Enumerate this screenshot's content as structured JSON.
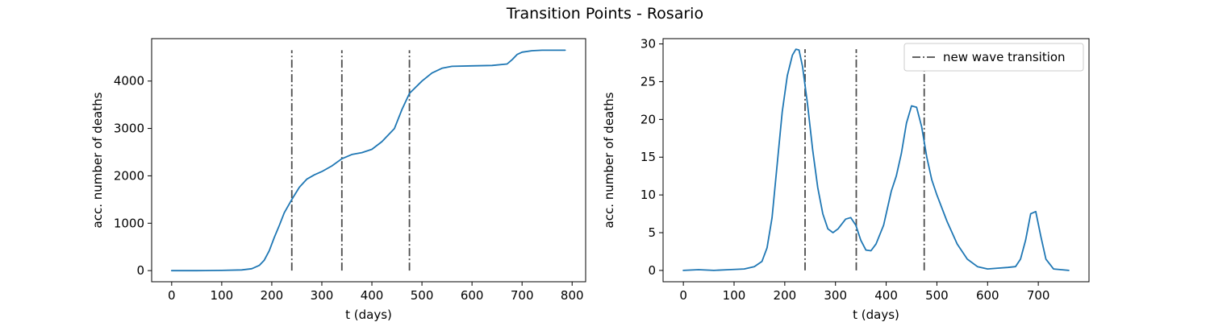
{
  "figure": {
    "title": "Transition Points - Rosario",
    "colors": {
      "line": "#1f77b4",
      "transition": "#4d4d4d",
      "axis": "#000000"
    }
  },
  "chart_data": [
    {
      "type": "line",
      "xlabel": "t (days)",
      "ylabel": "acc. number of deaths",
      "xlim": [
        -40,
        827
      ],
      "ylim": [
        -235,
        4895
      ],
      "xticks": [
        0,
        100,
        200,
        300,
        400,
        500,
        600,
        700,
        800
      ],
      "yticks": [
        0,
        1000,
        2000,
        3000,
        4000
      ],
      "grid": false,
      "transitions": [
        240,
        340,
        475
      ],
      "transition_range": [
        0,
        4650
      ],
      "series": [
        {
          "x": [
            0,
            50,
            100,
            140,
            160,
            175,
            185,
            195,
            205,
            215,
            225,
            240,
            255,
            270,
            285,
            300,
            320,
            340,
            360,
            380,
            400,
            420,
            445,
            460,
            475,
            500,
            520,
            540,
            560,
            600,
            640,
            670,
            680,
            690,
            700,
            720,
            740,
            786
          ],
          "y": [
            0,
            0,
            5,
            15,
            40,
            110,
            220,
            420,
            700,
            950,
            1220,
            1500,
            1760,
            1930,
            2020,
            2090,
            2210,
            2360,
            2450,
            2490,
            2560,
            2720,
            3000,
            3400,
            3740,
            4000,
            4170,
            4270,
            4310,
            4320,
            4330,
            4360,
            4450,
            4560,
            4610,
            4640,
            4650,
            4650
          ]
        }
      ]
    },
    {
      "type": "line",
      "xlabel": "t (days)",
      "ylabel": "acc. number of deaths",
      "xlim": [
        -40,
        800
      ],
      "ylim": [
        -1.5,
        30.7
      ],
      "xticks": [
        0,
        100,
        200,
        300,
        400,
        500,
        600,
        700
      ],
      "yticks": [
        0,
        5,
        10,
        15,
        20,
        25,
        30
      ],
      "grid": false,
      "transitions": [
        240,
        341,
        475
      ],
      "transition_range": [
        0,
        29.3
      ],
      "legend": {
        "position": "top-right",
        "label": "new wave transition"
      },
      "series": [
        {
          "x": [
            0,
            30,
            60,
            90,
            120,
            140,
            155,
            165,
            175,
            185,
            195,
            205,
            215,
            222,
            228,
            235,
            245,
            255,
            265,
            275,
            285,
            295,
            305,
            320,
            330,
            340,
            350,
            360,
            370,
            380,
            395,
            410,
            420,
            430,
            440,
            450,
            460,
            470,
            480,
            490,
            500,
            520,
            540,
            560,
            580,
            600,
            620,
            640,
            655,
            665,
            675,
            685,
            695,
            705,
            715,
            730,
            760
          ],
          "y": [
            0,
            0.1,
            0,
            0.1,
            0.2,
            0.5,
            1.2,
            3,
            7,
            14,
            21,
            25.8,
            28.5,
            29.3,
            29.2,
            27,
            22,
            16,
            11,
            7.5,
            5.5,
            5.0,
            5.5,
            6.8,
            7.0,
            6.0,
            4.0,
            2.7,
            2.6,
            3.5,
            6.0,
            10.5,
            12.5,
            15.5,
            19.5,
            21.8,
            21.6,
            19,
            15,
            12,
            10,
            6.5,
            3.5,
            1.5,
            0.5,
            0.2,
            0.3,
            0.4,
            0.5,
            1.5,
            4.0,
            7.5,
            7.8,
            4.5,
            1.5,
            0.2,
            0
          ]
        }
      ]
    }
  ]
}
